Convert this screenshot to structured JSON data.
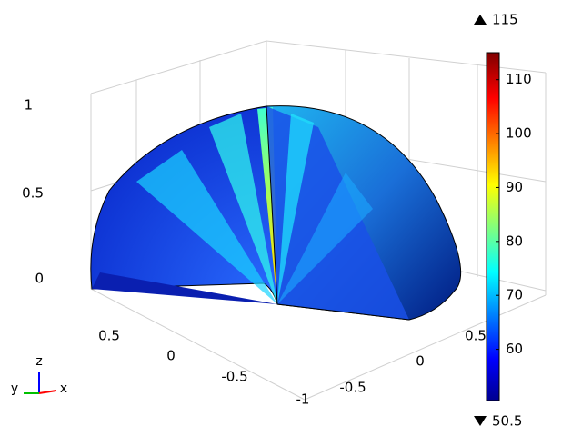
{
  "chart_data": {
    "type": "surface",
    "axes": [
      "x",
      "y",
      "z"
    ],
    "zticks": [
      0,
      0.5,
      1
    ],
    "xticks": [
      0.5,
      0,
      -0.5,
      -1
    ],
    "yticks": [
      -0.5,
      0,
      0.5
    ],
    "clim": [
      50.5,
      115
    ],
    "cticks": [
      60,
      70,
      80,
      90,
      100,
      110
    ],
    "colormap": "jet"
  }
}
